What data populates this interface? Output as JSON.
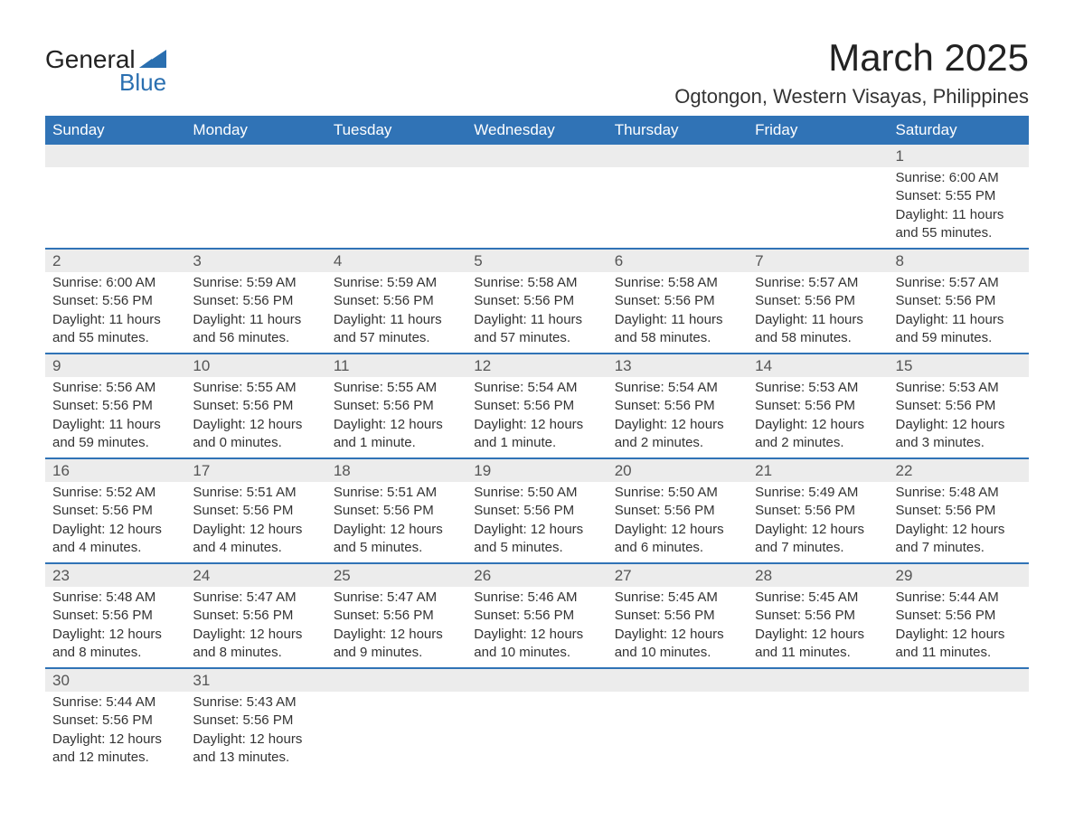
{
  "logo": {
    "line1": "General",
    "line2": "Blue",
    "tri_color": "#2a6fb0"
  },
  "header": {
    "month_title": "March 2025",
    "location": "Ogtongon, Western Visayas, Philippines"
  },
  "style": {
    "header_bg": "#3073b6",
    "header_fg": "#ffffff",
    "daynum_bg": "#ececec",
    "row_divider": "#3073b6",
    "text_color": "#333333",
    "title_fontsize": 42,
    "location_fontsize": 22,
    "dayheader_fontsize": 17,
    "daynum_fontsize": 17,
    "detail_fontsize": 15
  },
  "day_headers": [
    "Sunday",
    "Monday",
    "Tuesday",
    "Wednesday",
    "Thursday",
    "Friday",
    "Saturday"
  ],
  "weeks": [
    [
      null,
      null,
      null,
      null,
      null,
      null,
      {
        "n": "1",
        "sunrise": "6:00 AM",
        "sunset": "5:55 PM",
        "daylight": "11 hours and 55 minutes."
      }
    ],
    [
      {
        "n": "2",
        "sunrise": "6:00 AM",
        "sunset": "5:56 PM",
        "daylight": "11 hours and 55 minutes."
      },
      {
        "n": "3",
        "sunrise": "5:59 AM",
        "sunset": "5:56 PM",
        "daylight": "11 hours and 56 minutes."
      },
      {
        "n": "4",
        "sunrise": "5:59 AM",
        "sunset": "5:56 PM",
        "daylight": "11 hours and 57 minutes."
      },
      {
        "n": "5",
        "sunrise": "5:58 AM",
        "sunset": "5:56 PM",
        "daylight": "11 hours and 57 minutes."
      },
      {
        "n": "6",
        "sunrise": "5:58 AM",
        "sunset": "5:56 PM",
        "daylight": "11 hours and 58 minutes."
      },
      {
        "n": "7",
        "sunrise": "5:57 AM",
        "sunset": "5:56 PM",
        "daylight": "11 hours and 58 minutes."
      },
      {
        "n": "8",
        "sunrise": "5:57 AM",
        "sunset": "5:56 PM",
        "daylight": "11 hours and 59 minutes."
      }
    ],
    [
      {
        "n": "9",
        "sunrise": "5:56 AM",
        "sunset": "5:56 PM",
        "daylight": "11 hours and 59 minutes."
      },
      {
        "n": "10",
        "sunrise": "5:55 AM",
        "sunset": "5:56 PM",
        "daylight": "12 hours and 0 minutes."
      },
      {
        "n": "11",
        "sunrise": "5:55 AM",
        "sunset": "5:56 PM",
        "daylight": "12 hours and 1 minute."
      },
      {
        "n": "12",
        "sunrise": "5:54 AM",
        "sunset": "5:56 PM",
        "daylight": "12 hours and 1 minute."
      },
      {
        "n": "13",
        "sunrise": "5:54 AM",
        "sunset": "5:56 PM",
        "daylight": "12 hours and 2 minutes."
      },
      {
        "n": "14",
        "sunrise": "5:53 AM",
        "sunset": "5:56 PM",
        "daylight": "12 hours and 2 minutes."
      },
      {
        "n": "15",
        "sunrise": "5:53 AM",
        "sunset": "5:56 PM",
        "daylight": "12 hours and 3 minutes."
      }
    ],
    [
      {
        "n": "16",
        "sunrise": "5:52 AM",
        "sunset": "5:56 PM",
        "daylight": "12 hours and 4 minutes."
      },
      {
        "n": "17",
        "sunrise": "5:51 AM",
        "sunset": "5:56 PM",
        "daylight": "12 hours and 4 minutes."
      },
      {
        "n": "18",
        "sunrise": "5:51 AM",
        "sunset": "5:56 PM",
        "daylight": "12 hours and 5 minutes."
      },
      {
        "n": "19",
        "sunrise": "5:50 AM",
        "sunset": "5:56 PM",
        "daylight": "12 hours and 5 minutes."
      },
      {
        "n": "20",
        "sunrise": "5:50 AM",
        "sunset": "5:56 PM",
        "daylight": "12 hours and 6 minutes."
      },
      {
        "n": "21",
        "sunrise": "5:49 AM",
        "sunset": "5:56 PM",
        "daylight": "12 hours and 7 minutes."
      },
      {
        "n": "22",
        "sunrise": "5:48 AM",
        "sunset": "5:56 PM",
        "daylight": "12 hours and 7 minutes."
      }
    ],
    [
      {
        "n": "23",
        "sunrise": "5:48 AM",
        "sunset": "5:56 PM",
        "daylight": "12 hours and 8 minutes."
      },
      {
        "n": "24",
        "sunrise": "5:47 AM",
        "sunset": "5:56 PM",
        "daylight": "12 hours and 8 minutes."
      },
      {
        "n": "25",
        "sunrise": "5:47 AM",
        "sunset": "5:56 PM",
        "daylight": "12 hours and 9 minutes."
      },
      {
        "n": "26",
        "sunrise": "5:46 AM",
        "sunset": "5:56 PM",
        "daylight": "12 hours and 10 minutes."
      },
      {
        "n": "27",
        "sunrise": "5:45 AM",
        "sunset": "5:56 PM",
        "daylight": "12 hours and 10 minutes."
      },
      {
        "n": "28",
        "sunrise": "5:45 AM",
        "sunset": "5:56 PM",
        "daylight": "12 hours and 11 minutes."
      },
      {
        "n": "29",
        "sunrise": "5:44 AM",
        "sunset": "5:56 PM",
        "daylight": "12 hours and 11 minutes."
      }
    ],
    [
      {
        "n": "30",
        "sunrise": "5:44 AM",
        "sunset": "5:56 PM",
        "daylight": "12 hours and 12 minutes."
      },
      {
        "n": "31",
        "sunrise": "5:43 AM",
        "sunset": "5:56 PM",
        "daylight": "12 hours and 13 minutes."
      },
      null,
      null,
      null,
      null,
      null
    ]
  ],
  "labels": {
    "sunrise_prefix": "Sunrise: ",
    "sunset_prefix": "Sunset: ",
    "daylight_prefix": "Daylight: "
  }
}
